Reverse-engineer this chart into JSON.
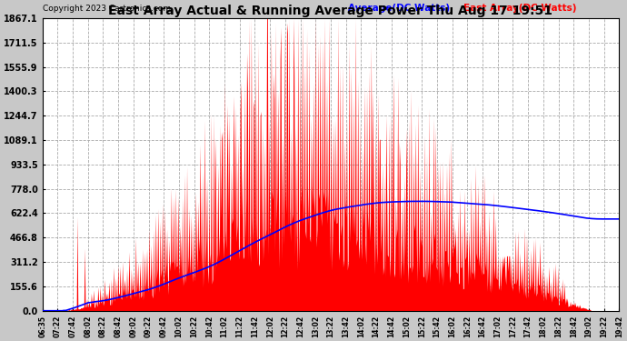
{
  "title": "East Array Actual & Running Average Power Thu Aug 17 19:51",
  "copyright": "Copyright 2023 Cartronics.com",
  "legend_avg": "Average(DC Watts)",
  "legend_east": "East Array(DC Watts)",
  "yticks": [
    0.0,
    155.6,
    311.2,
    466.8,
    622.4,
    778.0,
    933.5,
    1089.1,
    1244.7,
    1400.3,
    1555.9,
    1711.5,
    1867.1
  ],
  "ymax": 1867.1,
  "ymin": 0.0,
  "background_color": "#c8c8c8",
  "plot_bg_color": "#ffffff",
  "grid_color": "#cccccc",
  "bar_color": "#ff0000",
  "avg_color": "#0000ff",
  "title_color": "#000000",
  "copyright_color": "#000000",
  "xtick_labels": [
    "06:35",
    "07:22",
    "07:42",
    "08:02",
    "08:22",
    "08:42",
    "09:02",
    "09:22",
    "09:42",
    "10:02",
    "10:22",
    "10:42",
    "11:02",
    "11:22",
    "11:42",
    "12:02",
    "12:22",
    "12:42",
    "13:02",
    "13:22",
    "13:42",
    "14:02",
    "14:22",
    "14:42",
    "15:02",
    "15:22",
    "15:42",
    "16:02",
    "16:22",
    "16:42",
    "17:02",
    "17:22",
    "17:42",
    "18:02",
    "18:22",
    "18:42",
    "19:02",
    "19:22",
    "19:42"
  ]
}
